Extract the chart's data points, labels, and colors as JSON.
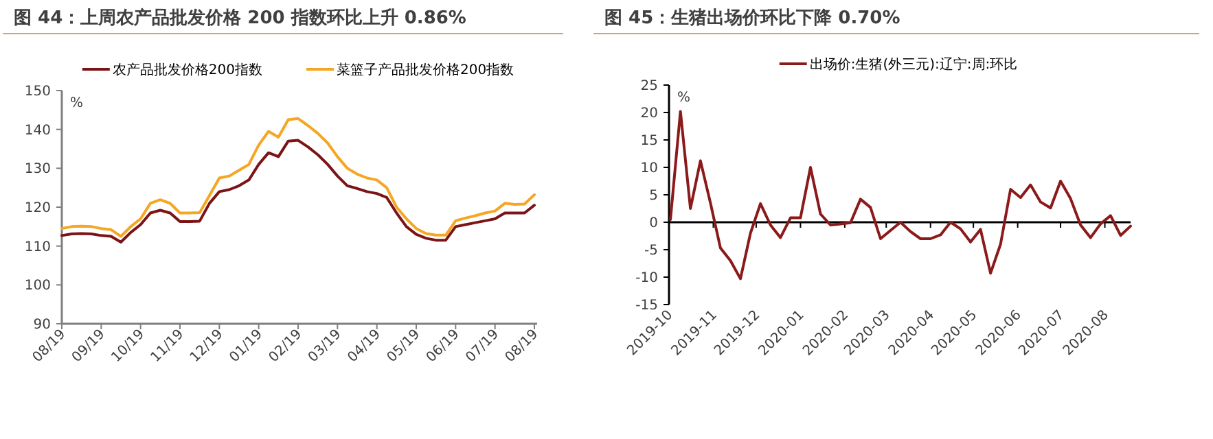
{
  "chart_data": [
    {
      "type": "line",
      "title": "图 44：上周农产品批发价格 200 指数环比上升 0.86%",
      "ylabel": "%",
      "legend": "top",
      "categories": [
        "08/19",
        null,
        null,
        null,
        "09/19",
        null,
        null,
        null,
        "10/19",
        null,
        null,
        null,
        "11/19",
        null,
        null,
        null,
        "12/19",
        null,
        null,
        null,
        "01/19",
        null,
        null,
        null,
        "02/19",
        null,
        null,
        null,
        "03/19",
        null,
        null,
        null,
        "04/19",
        null,
        null,
        null,
        "05/19",
        null,
        null,
        null,
        "06/19",
        null,
        null,
        null,
        "07/19",
        null,
        null,
        null,
        "08/19"
      ],
      "ylim": [
        90,
        150
      ],
      "yticks": [
        90,
        100,
        110,
        120,
        130,
        140,
        150
      ],
      "series": [
        {
          "name": "农产品批发价格200指数",
          "color": "#7b1416",
          "values": [
            112.7,
            113.1,
            113.2,
            113.1,
            112.7,
            112.5,
            111,
            113.5,
            115.5,
            118.5,
            119.2,
            118.5,
            116.3,
            116.3,
            116.4,
            121,
            124,
            124.5,
            125.5,
            127,
            131,
            134,
            133,
            137,
            137.2,
            135.5,
            133.5,
            131,
            128,
            125.5,
            124.8,
            124,
            123.5,
            122.5,
            118.5,
            115,
            113,
            112,
            111.5,
            111.5,
            115,
            115.5,
            116,
            116.5,
            117,
            118.5,
            118.5,
            118.5,
            120.5
          ]
        },
        {
          "name": "菜篮子产品批发价格200指数",
          "color": "#f5a623",
          "values": [
            114.5,
            115,
            115.1,
            115,
            114.5,
            114.2,
            112.5,
            115,
            117,
            121,
            121.9,
            121,
            118.5,
            118.5,
            118.6,
            123,
            127.5,
            128,
            129.5,
            131,
            136,
            139.5,
            138,
            142.5,
            142.8,
            141,
            139,
            136.5,
            133,
            130,
            128.5,
            127.5,
            127,
            125,
            120,
            117,
            114.5,
            113.2,
            112.8,
            112.8,
            116.5,
            117.2,
            117.8,
            118.5,
            119,
            121,
            120.7,
            120.8,
            123.2
          ]
        }
      ]
    },
    {
      "type": "line",
      "title": "图 45：生猪出场价环比下降 0.70%",
      "ylabel": "%",
      "legend": "top",
      "x": [
        "2019-10-02",
        "2019-10-09",
        "2019-10-16",
        "2019-10-23",
        "2019-10-30",
        "2019-11-06",
        "2019-11-13",
        "2019-11-20",
        "2019-11-27",
        "2019-12-04",
        "2019-12-11",
        "2019-12-18",
        "2019-12-25",
        "2020-01-01",
        "2020-01-08",
        "2020-01-15",
        "2020-01-22",
        "2020-01-29",
        "2020-02-05",
        "2020-02-12",
        "2020-02-19",
        "2020-02-26",
        "2020-03-04",
        "2020-03-11",
        "2020-03-18",
        "2020-03-25",
        "2020-04-01",
        "2020-04-08",
        "2020-04-15",
        "2020-04-22",
        "2020-04-29",
        "2020-05-06",
        "2020-05-13",
        "2020-05-20",
        "2020-05-27",
        "2020-06-03",
        "2020-06-10",
        "2020-06-17",
        "2020-06-24",
        "2020-07-01",
        "2020-07-08",
        "2020-07-15",
        "2020-07-22",
        "2020-07-29",
        "2020-08-05",
        "2020-08-12",
        "2020-08-19"
      ],
      "xlim": [
        "2019-10-01",
        "2020-08-19"
      ],
      "xticks": [
        "2019-10",
        "2019-11",
        "2019-12",
        "2020-01",
        "2020-02",
        "2020-03",
        "2020-04",
        "2020-05",
        "2020-06",
        "2020-07",
        "2020-08"
      ],
      "ylim": [
        -15,
        25
      ],
      "yticks": [
        -15,
        -10,
        -5,
        0,
        5,
        10,
        15,
        20,
        25
      ],
      "series": [
        {
          "name": "出场价:生猪(外三元):辽宁:周:环比",
          "color": "#8b1a1a",
          "values": [
            0.5,
            20.2,
            2.5,
            11.2,
            3.5,
            -4.7,
            -7,
            -10.3,
            -2,
            3.4,
            -0.5,
            -2.8,
            0.8,
            0.8,
            10,
            1.5,
            -0.5,
            -0.3,
            -0.1,
            4.2,
            2.7,
            -3,
            -1.5,
            0,
            -1.7,
            -3,
            -3,
            -2.3,
            0,
            -1.2,
            -3.6,
            -1.3,
            -9.3,
            -4,
            6,
            4.5,
            6.8,
            3.7,
            2.6,
            7.5,
            4.3,
            -0.5,
            -2.8,
            -0.3,
            1.2,
            -2.4,
            -0.7
          ]
        }
      ]
    }
  ]
}
